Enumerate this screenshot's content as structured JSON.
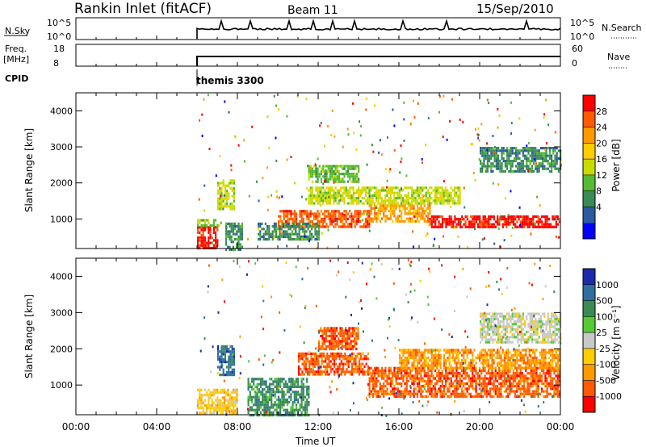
{
  "header": {
    "station": "Rankin Inlet (fitACF)",
    "beam": "Beam 11",
    "date": "15/Sep/2010"
  },
  "params": {
    "nsky_label": "N.Sky",
    "nsky_ticks": [
      "10^5",
      "10^0"
    ],
    "nsky_right_ticks": [
      "10^5",
      "10^0"
    ],
    "nsearch_label": "N.Search",
    "freq_label": "Freq.",
    "freq_unit": "[MHz]",
    "freq_ticks": [
      "18",
      "8"
    ],
    "nave_ticks": [
      "60",
      "0"
    ],
    "nave_label": "Nave",
    "cpid_label": "CPID",
    "cpid_value": "themis 3300"
  },
  "axes": {
    "xlabel": "Time UT",
    "ylabel": "Slant Range [km]",
    "x_ticks": [
      "00:00",
      "04:00",
      "08:00",
      "12:00",
      "16:00",
      "20:00",
      "00:00"
    ],
    "x_tick_hours": [
      0,
      4,
      8,
      12,
      16,
      20,
      24
    ],
    "y_ticks": [
      "1000",
      "2000",
      "3000",
      "4000"
    ],
    "y_tick_values": [
      1000,
      2000,
      3000,
      4000
    ],
    "ylim": [
      180,
      4500
    ],
    "xlim_hours": [
      0,
      24
    ]
  },
  "colorbars": {
    "power": {
      "title": "Power [dB]",
      "labels": [
        "28",
        "24",
        "20",
        "16",
        "12",
        "8",
        "4"
      ],
      "colors": [
        "#ff0000",
        "#ff5a00",
        "#ff9900",
        "#ffcc00",
        "#c8dc00",
        "#55bb33",
        "#3a8a55",
        "#2a5aa0",
        "#0000ff"
      ]
    },
    "velocity": {
      "title": "Velocity [m s⁻¹]",
      "labels": [
        "1000",
        "500",
        "100",
        "25",
        "-25",
        "-100",
        "-500",
        "-1000"
      ],
      "colors": [
        "#1a2aaa",
        "#2f6fa0",
        "#3a8a55",
        "#55cc33",
        "#c8c8c8",
        "#ffcc00",
        "#ff9900",
        "#ff5a00",
        "#ff0000"
      ]
    }
  },
  "chart_data": [
    {
      "type": "heatmap",
      "name": "power",
      "regions": [
        {
          "t": [
            6.0,
            7.0
          ],
          "r": [
            200,
            800
          ],
          "level": 0
        },
        {
          "t": [
            6.0,
            7.2
          ],
          "r": [
            800,
            1000
          ],
          "level": 5
        },
        {
          "t": [
            7.0,
            7.8
          ],
          "r": [
            1300,
            2100
          ],
          "level": 4
        },
        {
          "t": [
            7.4,
            8.2
          ],
          "r": [
            180,
            900
          ],
          "level": 6
        },
        {
          "t": [
            10.0,
            14.5
          ],
          "r": [
            750,
            1250
          ],
          "level": 1
        },
        {
          "t": [
            14.5,
            17.5
          ],
          "r": [
            900,
            1400
          ],
          "level": 2
        },
        {
          "t": [
            17.5,
            24.0
          ],
          "r": [
            750,
            1100
          ],
          "level": 0
        },
        {
          "t": [
            11.5,
            19.0
          ],
          "r": [
            1400,
            1900
          ],
          "level": 4
        },
        {
          "t": [
            11.5,
            14.0
          ],
          "r": [
            2000,
            2500
          ],
          "level": 5
        },
        {
          "t": [
            20.0,
            24.0
          ],
          "r": [
            2300,
            3000
          ],
          "level": 6
        },
        {
          "t": [
            9.0,
            12.0
          ],
          "r": [
            400,
            900
          ],
          "level": 6
        }
      ]
    },
    {
      "type": "heatmap",
      "name": "velocity",
      "regions": [
        {
          "t": [
            6.0,
            8.0
          ],
          "r": [
            200,
            900
          ],
          "level": 5
        },
        {
          "t": [
            7.0,
            7.8
          ],
          "r": [
            1300,
            2100
          ],
          "level": 1
        },
        {
          "t": [
            11.0,
            14.5
          ],
          "r": [
            1300,
            1900
          ],
          "level": 7
        },
        {
          "t": [
            12.0,
            14.0
          ],
          "r": [
            2000,
            2600
          ],
          "level": 7
        },
        {
          "t": [
            14.5,
            24.0
          ],
          "r": [
            700,
            1500
          ],
          "level": 7
        },
        {
          "t": [
            16.0,
            24.0
          ],
          "r": [
            1500,
            2000
          ],
          "level": 6
        },
        {
          "t": [
            20.0,
            24.0
          ],
          "r": [
            2200,
            3000
          ],
          "level": 4
        },
        {
          "t": [
            8.5,
            11.5
          ],
          "r": [
            200,
            1200
          ],
          "level": 2
        }
      ]
    }
  ]
}
